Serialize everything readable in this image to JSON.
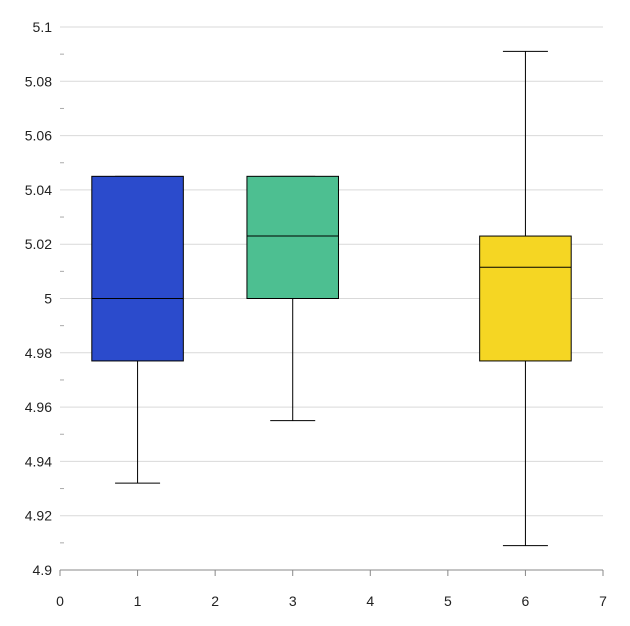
{
  "chart_data": {
    "type": "box",
    "title": "",
    "xlabel": "",
    "ylabel": "",
    "xlim": [
      0,
      7
    ],
    "ylim": [
      4.9,
      5.1
    ],
    "x_ticks": [
      "0",
      "1",
      "2",
      "3",
      "4",
      "5",
      "6",
      "7"
    ],
    "y_ticks": [
      "4.9",
      "4.92",
      "4.94",
      "4.96",
      "4.98",
      "5",
      "5.02",
      "5.04",
      "5.06",
      "5.08",
      "5.1"
    ],
    "grid": true,
    "boxes": [
      {
        "x": 1,
        "min": 4.932,
        "q1": 4.977,
        "median": 5.0,
        "q3": 5.045,
        "max": 5.045,
        "color": "#2b4bcc"
      },
      {
        "x": 3,
        "min": 4.955,
        "q1": 5.0,
        "median": 5.023,
        "q3": 5.045,
        "max": 5.045,
        "color": "#4dbf91"
      },
      {
        "x": 6,
        "min": 4.909,
        "q1": 4.977,
        "median": 5.0115,
        "q3": 5.023,
        "max": 5.091,
        "color": "#f5d623"
      }
    ]
  }
}
